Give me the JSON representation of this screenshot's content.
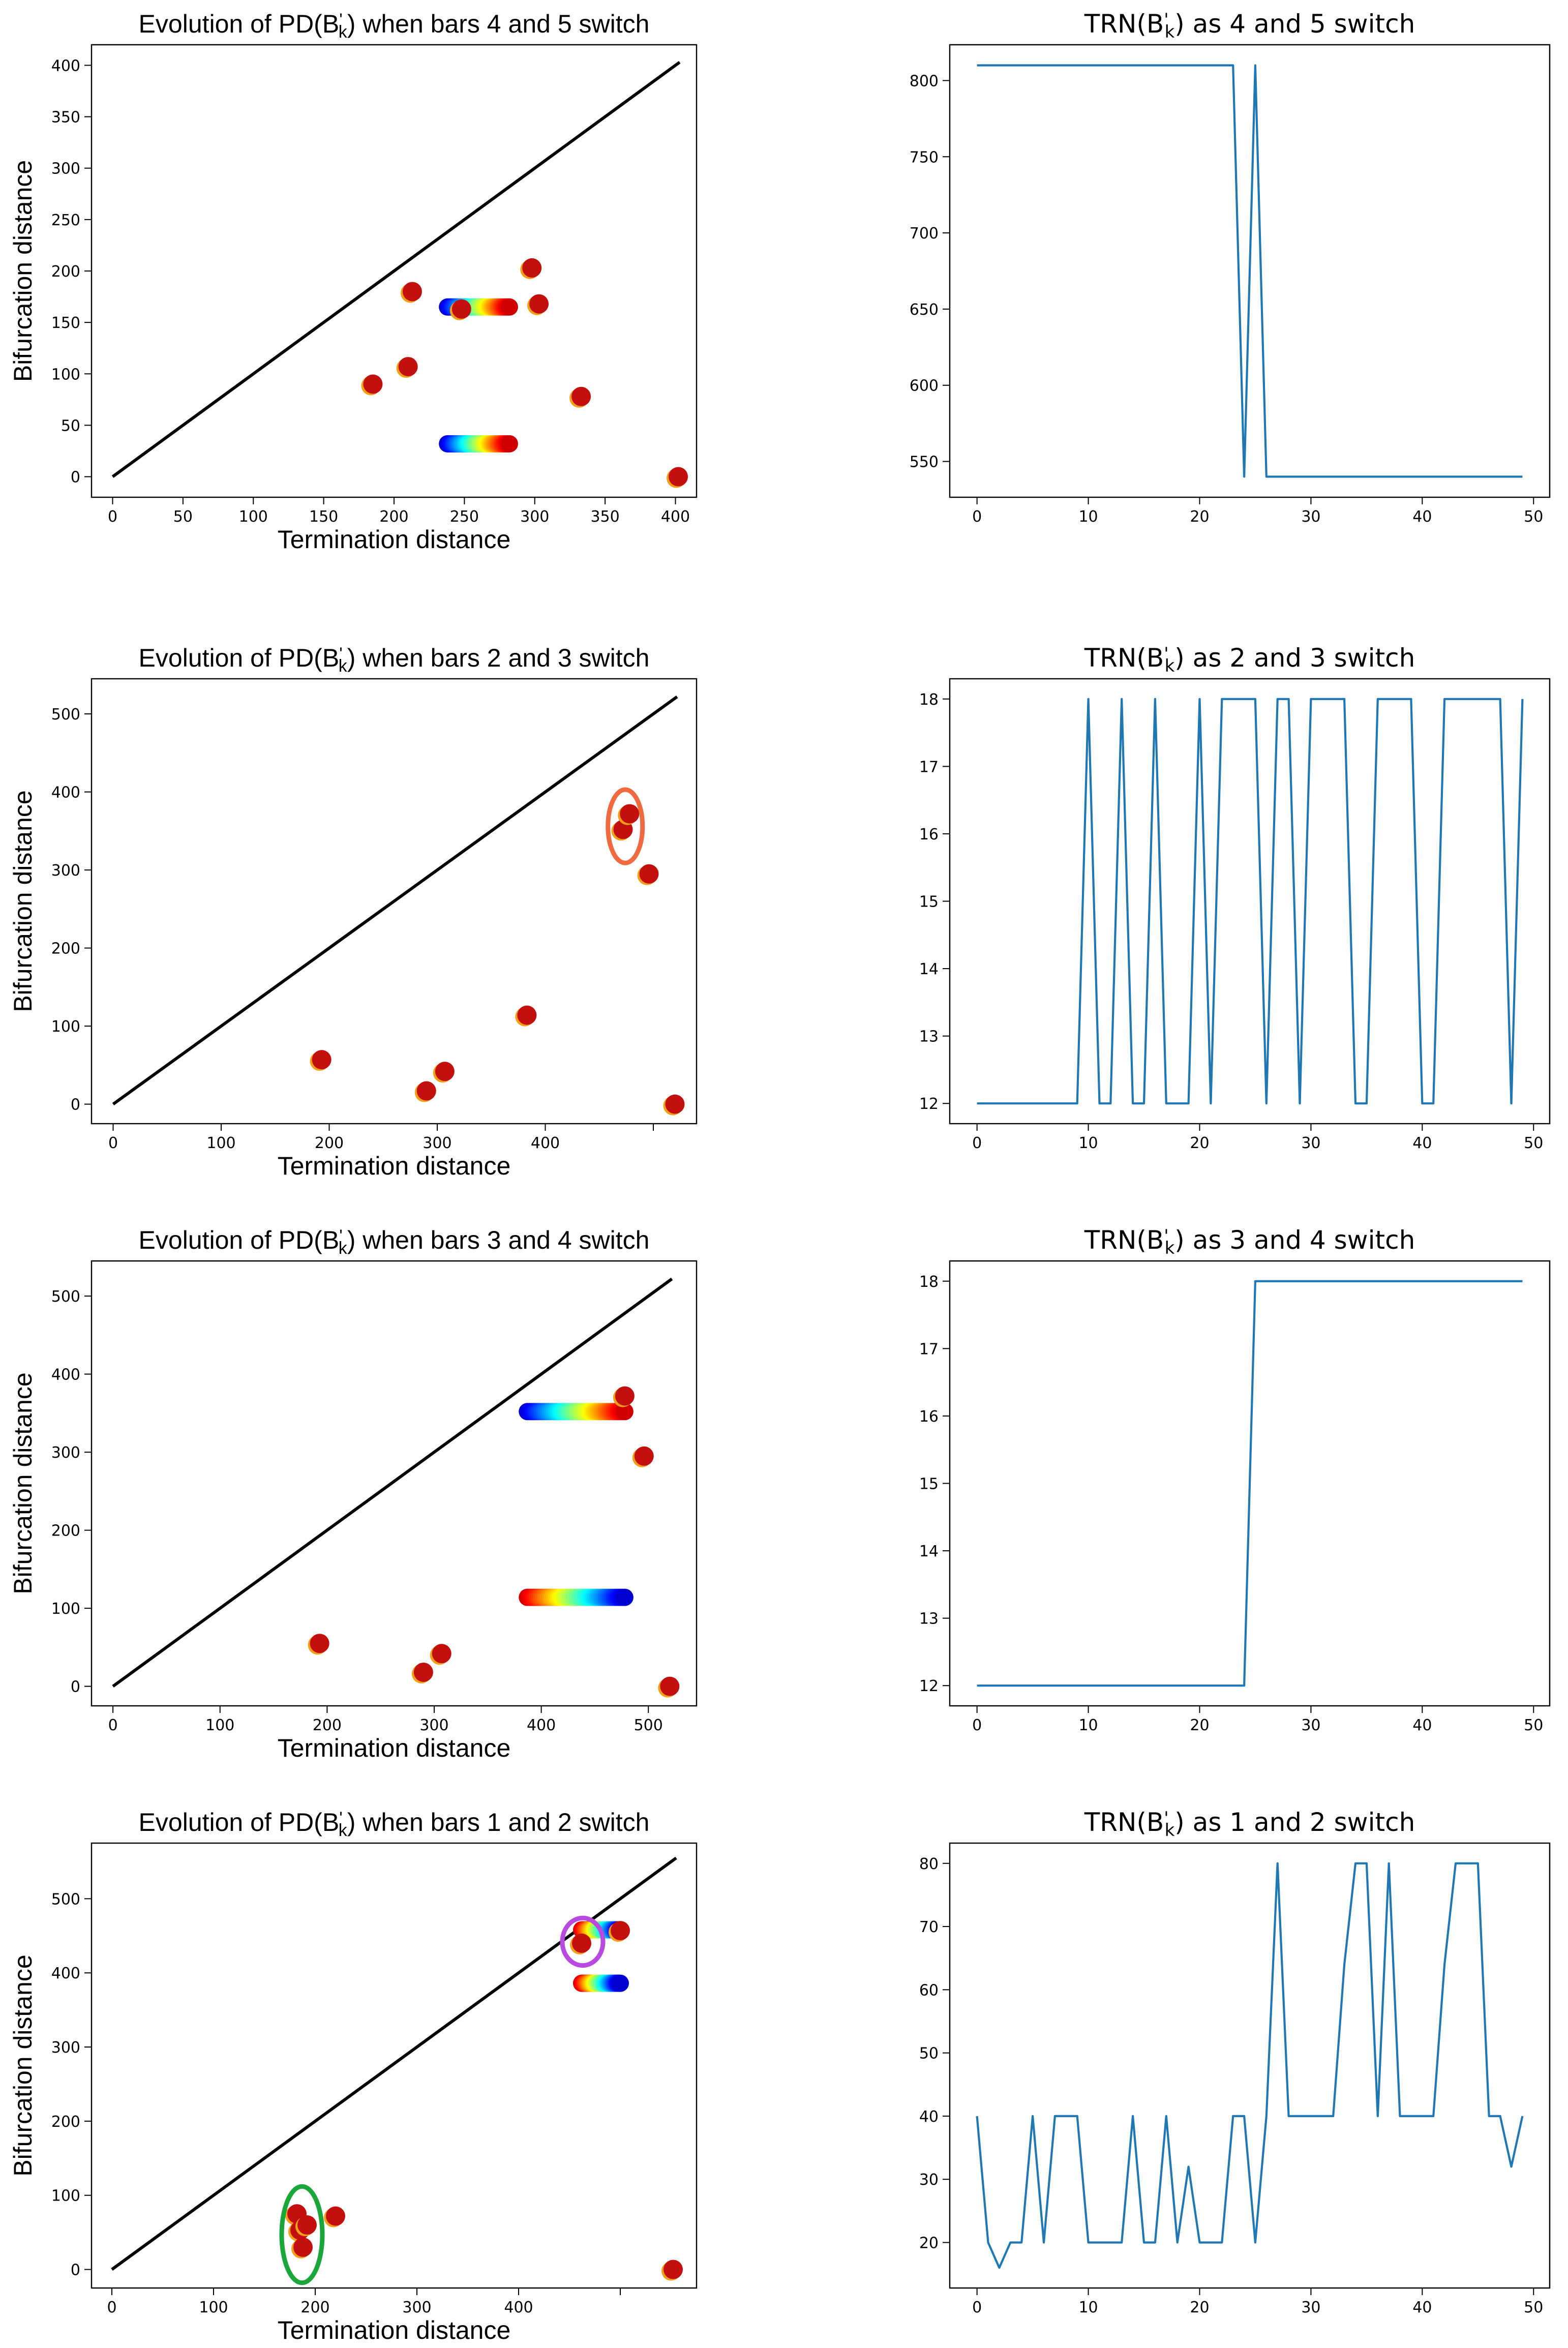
{
  "figure": {
    "panels_left": [
      {
        "title": "Evolution of PD(B'k) when bars 4 and 5 switch",
        "xlabel": "Termination distance",
        "ylabel": "Bifurcation distance",
        "xlim": [
          -15,
          415
        ],
        "ylim": [
          -20,
          420
        ],
        "xticks": [
          0,
          50,
          100,
          150,
          200,
          250,
          300,
          350,
          400
        ],
        "yticks": [
          0,
          50,
          100,
          150,
          200,
          250,
          300,
          350,
          400
        ],
        "diagonal_end": 403,
        "static_points": [
          [
            185,
            90
          ],
          [
            210,
            107
          ],
          [
            213,
            180
          ],
          [
            248,
            163
          ],
          [
            298,
            203
          ],
          [
            303,
            168
          ],
          [
            333,
            78
          ],
          [
            402,
            0
          ]
        ],
        "gradient_tracks": [
          {
            "y": 165,
            "from": 238,
            "to": 282,
            "reverse": false
          },
          {
            "y": 32,
            "from": 238,
            "to": 282,
            "reverse": false
          }
        ],
        "ellipses": []
      },
      {
        "title": "Evolution of PD(B'k) when bars 2 and 3 switch",
        "xlabel": "Termination distance",
        "ylabel": "Bifurcation distance",
        "xlim": [
          -20,
          540
        ],
        "ylim": [
          -25,
          545
        ],
        "xticks": [
          0,
          100,
          200,
          300,
          400
        ],
        "xtick_extra": 500,
        "yticks": [
          0,
          100,
          200,
          300,
          400,
          500
        ],
        "diagonal_end": 522,
        "static_points": [
          [
            193,
            57
          ],
          [
            290,
            17
          ],
          [
            307,
            42
          ],
          [
            383,
            114
          ],
          [
            472,
            352
          ],
          [
            478,
            372
          ],
          [
            496,
            295
          ],
          [
            520,
            0
          ]
        ],
        "gradient_tracks": [],
        "ellipses": [
          {
            "cx": 474,
            "cy": 356,
            "rx": 16,
            "ry": 47,
            "color": "#ef6b3f"
          }
        ]
      },
      {
        "title": "Evolution of PD(B'k) when bars 3 and 4 switch",
        "xlabel": "Termination distance",
        "ylabel": "Bifurcation distance",
        "xlim": [
          -20,
          545
        ],
        "ylim": [
          -25,
          545
        ],
        "xticks": [
          0,
          100,
          200,
          300,
          400,
          500
        ],
        "yticks": [
          0,
          100,
          200,
          300,
          400,
          500
        ],
        "diagonal_end": 522,
        "static_points": [
          [
            193,
            55
          ],
          [
            290,
            18
          ],
          [
            307,
            42
          ],
          [
            478,
            372
          ],
          [
            496,
            295
          ],
          [
            520,
            0
          ]
        ],
        "gradient_tracks": [
          {
            "y": 352,
            "from": 387,
            "to": 478,
            "reverse": false
          },
          {
            "y": 114,
            "from": 387,
            "to": 478,
            "reverse": true
          }
        ],
        "ellipses": []
      },
      {
        "title": "Evolution of PD(B'k) when bars 1 and 2 switch",
        "xlabel": "Termination distance",
        "ylabel": "Bifurcation distance",
        "xlim": [
          -20,
          575
        ],
        "ylim": [
          -25,
          575
        ],
        "xticks": [
          0,
          100,
          200,
          300,
          400
        ],
        "xtick_extra": 500,
        "yticks": [
          0,
          100,
          200,
          300,
          400,
          500
        ],
        "diagonal_end": 555,
        "static_points": [
          [
            182,
            75
          ],
          [
            185,
            53
          ],
          [
            192,
            60
          ],
          [
            188,
            30
          ],
          [
            220,
            72
          ],
          [
            462,
            440
          ],
          [
            500,
            457
          ],
          [
            552,
            0
          ]
        ],
        "gradient_tracks": [
          {
            "y": 458,
            "from": 462,
            "to": 500,
            "reverse": true
          },
          {
            "y": 386,
            "from": 462,
            "to": 500,
            "reverse": true
          }
        ],
        "ellipses": [
          {
            "cx": 463,
            "cy": 442,
            "rx": 20,
            "ry": 32,
            "color": "#b84ae0"
          },
          {
            "cx": 187,
            "cy": 47,
            "rx": 20,
            "ry": 65,
            "color": "#1aa63a"
          }
        ]
      }
    ],
    "panels_right": [
      {
        "title": "TRN(B'k) as 4 and 5 switch",
        "xlim": [
          -2.45,
          51.45
        ],
        "ylim": [
          526.5,
          823.5
        ],
        "xticks": [
          0,
          10,
          20,
          30,
          40,
          50
        ],
        "yticks": [
          550,
          600,
          650,
          700,
          750,
          800
        ],
        "values": [
          810,
          810,
          810,
          810,
          810,
          810,
          810,
          810,
          810,
          810,
          810,
          810,
          810,
          810,
          810,
          810,
          810,
          810,
          810,
          810,
          810,
          810,
          810,
          810,
          540,
          810,
          540,
          540,
          540,
          540,
          540,
          540,
          540,
          540,
          540,
          540,
          540,
          540,
          540,
          540,
          540,
          540,
          540,
          540,
          540,
          540,
          540,
          540,
          540,
          540
        ]
      },
      {
        "title": "TRN(B'k) as 2 and 3 switch",
        "xlim": [
          -2.45,
          51.45
        ],
        "ylim": [
          11.7,
          18.3
        ],
        "xticks": [
          0,
          10,
          20,
          30,
          40,
          50
        ],
        "yticks": [
          12,
          13,
          14,
          15,
          16,
          17,
          18
        ],
        "values": [
          12,
          12,
          12,
          12,
          12,
          12,
          12,
          12,
          12,
          12,
          18,
          12,
          12,
          18,
          12,
          12,
          18,
          12,
          12,
          12,
          18,
          12,
          18,
          18,
          18,
          18,
          12,
          18,
          18,
          12,
          18,
          18,
          18,
          18,
          12,
          12,
          18,
          18,
          18,
          18,
          12,
          12,
          18,
          18,
          18,
          18,
          18,
          18,
          12,
          18
        ]
      },
      {
        "title": "TRN(B'k) as 3 and 4 switch",
        "xlim": [
          -2.45,
          51.45
        ],
        "ylim": [
          11.7,
          18.3
        ],
        "xticks": [
          0,
          10,
          20,
          30,
          40,
          50
        ],
        "yticks": [
          12,
          13,
          14,
          15,
          16,
          17,
          18
        ],
        "values": [
          12,
          12,
          12,
          12,
          12,
          12,
          12,
          12,
          12,
          12,
          12,
          12,
          12,
          12,
          12,
          12,
          12,
          12,
          12,
          12,
          12,
          12,
          12,
          12,
          12,
          18,
          18,
          18,
          18,
          18,
          18,
          18,
          18,
          18,
          18,
          18,
          18,
          18,
          18,
          18,
          18,
          18,
          18,
          18,
          18,
          18,
          18,
          18,
          18,
          18
        ]
      },
      {
        "title": "TRN(B'k) as 1 and 2 switch",
        "xlim": [
          -2.45,
          51.45
        ],
        "ylim": [
          12.8,
          83.2
        ],
        "xticks": [
          0,
          10,
          20,
          30,
          40,
          50
        ],
        "yticks": [
          20,
          30,
          40,
          50,
          60,
          70,
          80
        ],
        "values": [
          40,
          20,
          16,
          20,
          20,
          40,
          20,
          40,
          40,
          40,
          20,
          20,
          20,
          20,
          40,
          20,
          20,
          40,
          20,
          32,
          20,
          20,
          20,
          40,
          40,
          20,
          40,
          80,
          40,
          40,
          40,
          40,
          40,
          64,
          80,
          80,
          40,
          80,
          40,
          40,
          40,
          40,
          64,
          80,
          80,
          80,
          40,
          40,
          32,
          40
        ]
      }
    ]
  },
  "chart_data": [
    {
      "type": "scatter",
      "title": "Evolution of PD(B'k) when bars 4 and 5 switch",
      "xlabel": "Termination distance",
      "ylabel": "Bifurcation distance",
      "xlim": [
        -15,
        415
      ],
      "ylim": [
        -20,
        420
      ],
      "points": [
        [
          185,
          90
        ],
        [
          210,
          107
        ],
        [
          213,
          180
        ],
        [
          248,
          163
        ],
        [
          298,
          203
        ],
        [
          303,
          168
        ],
        [
          333,
          78
        ],
        [
          402,
          0
        ]
      ],
      "moving_bars": [
        {
          "y": 165,
          "x_range": [
            238,
            282
          ]
        },
        {
          "y": 32,
          "x_range": [
            238,
            282
          ]
        }
      ]
    },
    {
      "type": "scatter",
      "title": "Evolution of PD(B'k) when bars 2 and 3 switch",
      "xlabel": "Termination distance",
      "ylabel": "Bifurcation distance",
      "xlim": [
        -20,
        540
      ],
      "ylim": [
        -25,
        545
      ],
      "points": [
        [
          193,
          57
        ],
        [
          290,
          17
        ],
        [
          307,
          42
        ],
        [
          383,
          114
        ],
        [
          472,
          352
        ],
        [
          478,
          372
        ],
        [
          496,
          295
        ],
        [
          520,
          0
        ]
      ]
    },
    {
      "type": "scatter",
      "title": "Evolution of PD(B'k) when bars 3 and 4 switch",
      "xlabel": "Termination distance",
      "ylabel": "Bifurcation distance",
      "xlim": [
        -20,
        545
      ],
      "ylim": [
        -25,
        545
      ],
      "points": [
        [
          193,
          55
        ],
        [
          290,
          18
        ],
        [
          307,
          42
        ],
        [
          478,
          372
        ],
        [
          496,
          295
        ],
        [
          520,
          0
        ]
      ],
      "moving_bars": [
        {
          "y": 352,
          "x_range": [
            387,
            478
          ]
        },
        {
          "y": 114,
          "x_range": [
            387,
            478
          ]
        }
      ]
    },
    {
      "type": "scatter",
      "title": "Evolution of PD(B'k) when bars 1 and 2 switch",
      "xlabel": "Termination distance",
      "ylabel": "Bifurcation distance",
      "xlim": [
        -20,
        575
      ],
      "ylim": [
        -25,
        575
      ],
      "points": [
        [
          182,
          75
        ],
        [
          185,
          53
        ],
        [
          192,
          60
        ],
        [
          188,
          30
        ],
        [
          220,
          72
        ],
        [
          462,
          440
        ],
        [
          500,
          457
        ],
        [
          552,
          0
        ]
      ],
      "moving_bars": [
        {
          "y": 458,
          "x_range": [
            462,
            500
          ]
        },
        {
          "y": 386,
          "x_range": [
            462,
            500
          ]
        }
      ]
    },
    {
      "type": "line",
      "title": "TRN(B'k) as 4 and 5 switch",
      "x": "0..49",
      "ylim": [
        526.5,
        823.5
      ]
    },
    {
      "type": "line",
      "title": "TRN(B'k) as 2 and 3 switch",
      "x": "0..49",
      "ylim": [
        11.7,
        18.3
      ]
    },
    {
      "type": "line",
      "title": "TRN(B'k) as 3 and 4 switch",
      "x": "0..49",
      "ylim": [
        11.7,
        18.3
      ]
    },
    {
      "type": "line",
      "title": "TRN(B'k) as 1 and 2 switch",
      "x": "0..49",
      "ylim": [
        12.8,
        83.2
      ]
    }
  ]
}
